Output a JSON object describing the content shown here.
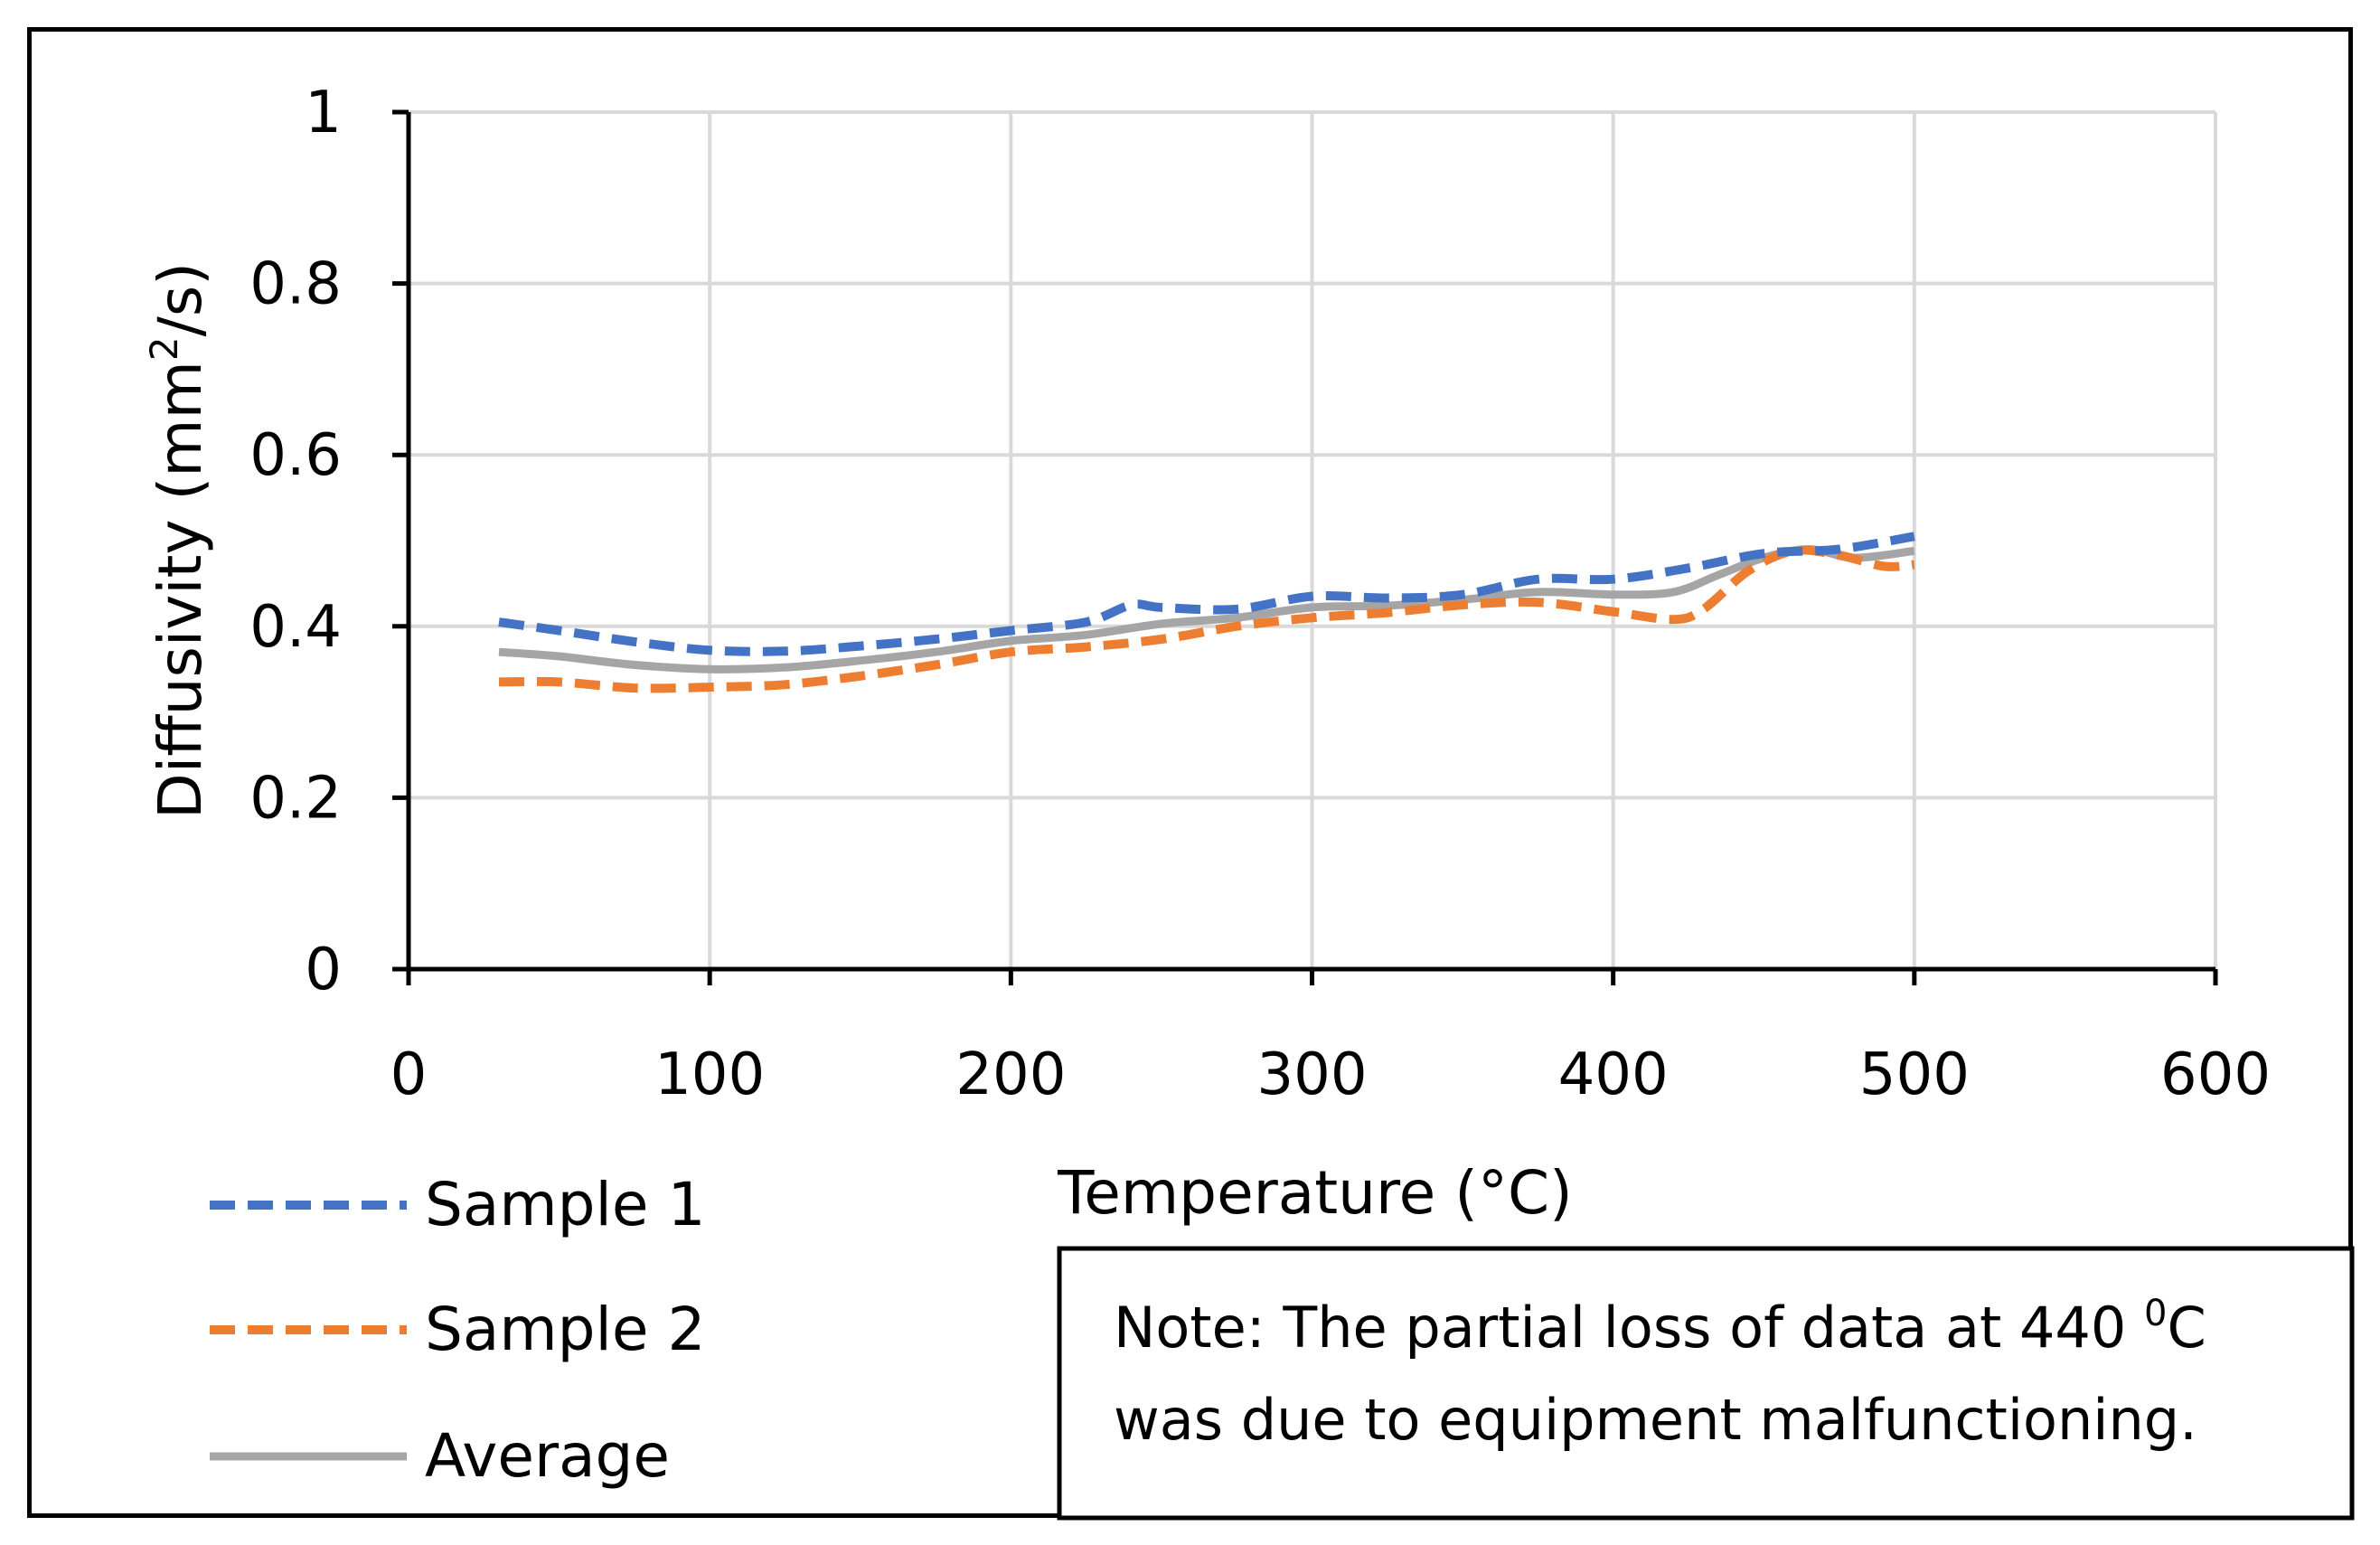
{
  "chart_data": {
    "type": "line",
    "title": "",
    "xlabel": "Temperature (°C)",
    "ylabel_parts": {
      "main": "Diffusivity (mm",
      "sup": "2",
      "tail": "/s)"
    },
    "xlim": [
      0,
      600
    ],
    "ylim": [
      0,
      1
    ],
    "xticks": [
      0,
      100,
      200,
      300,
      400,
      500,
      600
    ],
    "yticks": [
      0,
      0.2,
      0.4,
      0.6,
      0.8,
      1
    ],
    "ytick_labels": [
      "0",
      "0.2",
      "0.4",
      "0.6",
      "0.8",
      "1"
    ],
    "grid": true,
    "legend_position": "bottom-left",
    "series": [
      {
        "name": "Sample 1",
        "color": "#4472C4",
        "style": "dashed",
        "x": [
          30,
          50,
          75,
          100,
          125,
          150,
          175,
          200,
          225,
          240,
          250,
          275,
          300,
          325,
          350,
          375,
          400,
          425,
          450,
          475,
          500
        ],
        "y": [
          0.405,
          0.395,
          0.382,
          0.372,
          0.371,
          0.377,
          0.385,
          0.395,
          0.405,
          0.425,
          0.422,
          0.42,
          0.435,
          0.433,
          0.437,
          0.455,
          0.455,
          0.468,
          0.485,
          0.49,
          0.505
        ]
      },
      {
        "name": "Sample 2",
        "color": "#ED7D31",
        "style": "dashed",
        "x": [
          30,
          50,
          75,
          100,
          125,
          150,
          175,
          200,
          225,
          250,
          275,
          300,
          325,
          350,
          375,
          400,
          420,
          430,
          445,
          460,
          475,
          490,
          500
        ],
        "y": [
          0.335,
          0.335,
          0.328,
          0.329,
          0.332,
          0.342,
          0.355,
          0.37,
          0.376,
          0.385,
          0.4,
          0.41,
          0.416,
          0.425,
          0.428,
          0.417,
          0.408,
          0.42,
          0.465,
          0.488,
          0.483,
          0.47,
          0.472
        ]
      },
      {
        "name": "Average",
        "color": "#A5A5A5",
        "style": "solid",
        "x": [
          30,
          50,
          75,
          100,
          125,
          150,
          175,
          200,
          225,
          250,
          275,
          300,
          325,
          350,
          375,
          400,
          420,
          435,
          450,
          465,
          480,
          500
        ],
        "y": [
          0.37,
          0.365,
          0.355,
          0.35,
          0.352,
          0.36,
          0.37,
          0.383,
          0.39,
          0.403,
          0.41,
          0.422,
          0.424,
          0.431,
          0.44,
          0.437,
          0.44,
          0.46,
          0.48,
          0.49,
          0.48,
          0.488
        ]
      }
    ],
    "note": {
      "line1_main": "Note: The partial loss of data at 440 ",
      "line1_sup": "0",
      "line1_tail": "C",
      "line2": "was due to equipment malfunctioning."
    }
  }
}
